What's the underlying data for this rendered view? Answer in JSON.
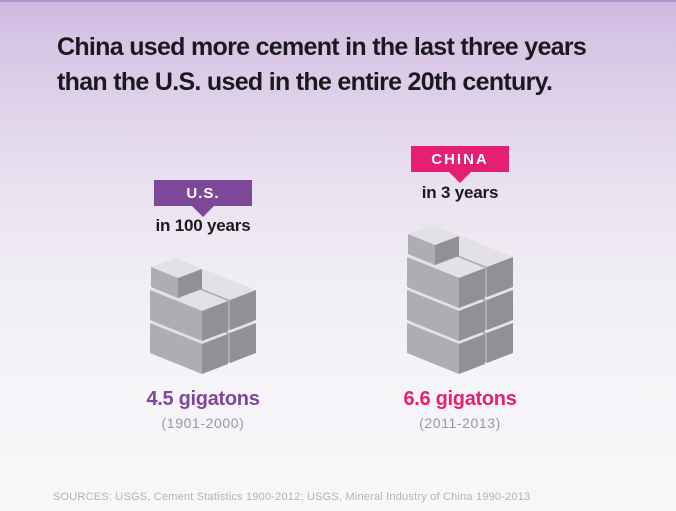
{
  "title": {
    "line1": "China used more cement in the last three years",
    "line2": "than the U.S. used in the entire 20th century."
  },
  "comparison": [
    {
      "label": "U.S.",
      "duration": "in 100 years",
      "amount": "4.5 gigatons",
      "period": "(1901-2000)",
      "accent": "#7e4898",
      "units_big": 4,
      "units_small": 1
    },
    {
      "label": "CHINA",
      "duration": "in 3 years",
      "amount": "6.6 gigatons",
      "period": "(2011-2013)",
      "accent": "#e51f72",
      "units_big": 6,
      "units_small": 1
    }
  ],
  "cube_colors": {
    "top": "#e3e1e5",
    "front": "#afadb1",
    "side": "#929094"
  },
  "sources": "SOURCES: USGS, Cement Statistics 1900-2012; USGS, Mineral Industry of China 1990-2013",
  "page_colors": {
    "background_top": "#cdb7df",
    "background_bottom": "#f8f7f9",
    "title_text": "#1b191d",
    "muted_text": "#9a989c",
    "sources_text": "#b3b1b5"
  },
  "chart_data": {
    "type": "bar",
    "subtype": "isometric-cube-pictogram",
    "categories": [
      "U.S.",
      "CHINA"
    ],
    "values": [
      4.5,
      6.6
    ],
    "value_unit": "gigatons of cement",
    "category_sublabels": [
      "in 100 years",
      "in 3 years"
    ],
    "category_periods": [
      "(1901-2000)",
      "(2011-2013)"
    ],
    "data_labels": [
      "4.5 gigatons",
      "6.6 gigatons"
    ],
    "title": "China used more cement in the last three years than the U.S. used in the entire 20th century.",
    "xlabel": "",
    "ylabel": "",
    "grid": false,
    "legend_position": "none",
    "series_colors": [
      "#7e4898",
      "#e51f72"
    ]
  }
}
